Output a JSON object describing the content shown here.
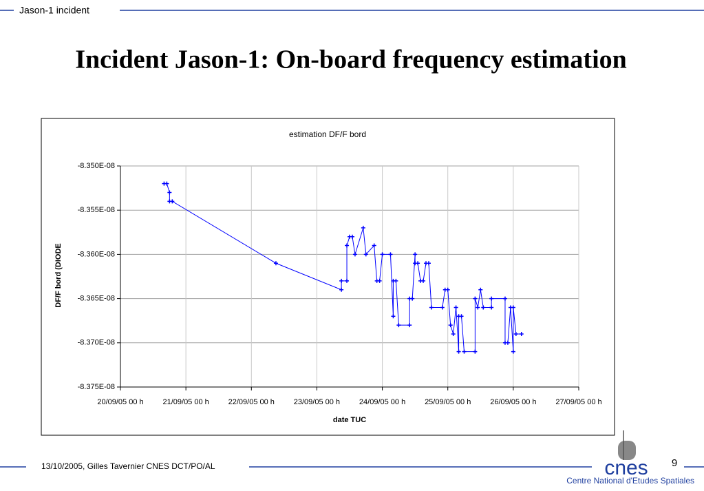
{
  "header": "Jason-1 incident",
  "title": "Incident Jason-1: On-board frequency estimation",
  "footer": {
    "author": "13/10/2005, Gilles Tavernier CNES DCT/PO/AL",
    "page": "9",
    "logo": "cnes",
    "organization": "Centre National d'Etudes Spatiales"
  },
  "chart_data": {
    "type": "line",
    "title": "estimation DF/F bord",
    "x_label": "date TUC",
    "y_label": "DF/F bord (DIODE",
    "color": "#0000ff",
    "grid": true,
    "xlim": [
      "2005-09-20T00:00",
      "2005-09-27T00:00"
    ],
    "xticks": [
      {
        "value": "2005-09-20T00:00",
        "label": "20/09/05 00 h"
      },
      {
        "value": "2005-09-21T00:00",
        "label": "21/09/05 00 h"
      },
      {
        "value": "2005-09-22T00:00",
        "label": "22/09/05 00 h"
      },
      {
        "value": "2005-09-23T00:00",
        "label": "23/09/05 00 h"
      },
      {
        "value": "2005-09-24T00:00",
        "label": "24/09/05 00 h"
      },
      {
        "value": "2005-09-25T00:00",
        "label": "25/09/05 00 h"
      },
      {
        "value": "2005-09-26T00:00",
        "label": "26/09/05 00 h"
      },
      {
        "value": "2005-09-27T00:00",
        "label": "27/09/05 00 h"
      }
    ],
    "ylim": [
      -8.375e-08,
      -8.35e-08
    ],
    "yticks": [
      {
        "value": -8.375e-08,
        "label": "-8.375E-08"
      },
      {
        "value": -8.37e-08,
        "label": "-8.370E-08"
      },
      {
        "value": -8.365e-08,
        "label": "-8.365E-08"
      },
      {
        "value": -8.36e-08,
        "label": "-8.360E-08"
      },
      {
        "value": -8.355e-08,
        "label": "-8.355E-08"
      },
      {
        "value": -8.35e-08,
        "label": "-8.350E-08"
      }
    ],
    "x": [
      "2005-09-20T16:00",
      "2005-09-20T17:00",
      "2005-09-20T18:00",
      "2005-09-20T18:00",
      "2005-09-20T19:00",
      "2005-09-22T09:00",
      "2005-09-23T09:00",
      "2005-09-23T09:00",
      "2005-09-23T11:00",
      "2005-09-23T11:00",
      "2005-09-23T12:00",
      "2005-09-23T13:00",
      "2005-09-23T14:00",
      "2005-09-23T17:00",
      "2005-09-23T18:00",
      "2005-09-23T21:00",
      "2005-09-23T22:00",
      "2005-09-23T23:00",
      "2005-09-24T00:00",
      "2005-09-24T03:00",
      "2005-09-24T04:00",
      "2005-09-24T04:00",
      "2005-09-24T05:00",
      "2005-09-24T06:00",
      "2005-09-24T10:00",
      "2005-09-24T10:00",
      "2005-09-24T11:00",
      "2005-09-24T12:00",
      "2005-09-24T12:00",
      "2005-09-24T13:00",
      "2005-09-24T14:00",
      "2005-09-24T15:00",
      "2005-09-24T16:00",
      "2005-09-24T17:00",
      "2005-09-24T18:00",
      "2005-09-24T22:00",
      "2005-09-24T23:00",
      "2005-09-25T00:00",
      "2005-09-25T01:00",
      "2005-09-25T02:00",
      "2005-09-25T03:00",
      "2005-09-25T04:00",
      "2005-09-25T04:00",
      "2005-09-25T05:00",
      "2005-09-25T06:00",
      "2005-09-25T10:00",
      "2005-09-25T10:00",
      "2005-09-25T11:00",
      "2005-09-25T12:00",
      "2005-09-25T13:00",
      "2005-09-25T16:00",
      "2005-09-25T16:00",
      "2005-09-25T21:00",
      "2005-09-25T21:00",
      "2005-09-25T22:00",
      "2005-09-25T23:00",
      "2005-09-26T00:00",
      "2005-09-26T00:00",
      "2005-09-26T01:00",
      "2005-09-26T03:00"
    ],
    "values": [
      -8.352e-08,
      -8.352e-08,
      -8.353e-08,
      -8.354e-08,
      -8.354e-08,
      -8.361e-08,
      -8.364e-08,
      -8.363e-08,
      -8.363e-08,
      -8.359e-08,
      -8.358e-08,
      -8.358e-08,
      -8.36e-08,
      -8.357e-08,
      -8.36e-08,
      -8.359e-08,
      -8.363e-08,
      -8.363e-08,
      -8.36e-08,
      -8.36e-08,
      -8.367e-08,
      -8.363e-08,
      -8.363e-08,
      -8.368e-08,
      -8.368e-08,
      -8.365e-08,
      -8.365e-08,
      -8.36e-08,
      -8.361e-08,
      -8.361e-08,
      -8.363e-08,
      -8.363e-08,
      -8.361e-08,
      -8.361e-08,
      -8.366e-08,
      -8.366e-08,
      -8.364e-08,
      -8.364e-08,
      -8.368e-08,
      -8.369e-08,
      -8.366e-08,
      -8.371e-08,
      -8.367e-08,
      -8.367e-08,
      -8.371e-08,
      -8.371e-08,
      -8.365e-08,
      -8.366e-08,
      -8.364e-08,
      -8.366e-08,
      -8.366e-08,
      -8.365e-08,
      -8.365e-08,
      -8.37e-08,
      -8.37e-08,
      -8.366e-08,
      -8.371e-08,
      -8.366e-08,
      -8.369e-08,
      -8.369e-08
    ]
  }
}
